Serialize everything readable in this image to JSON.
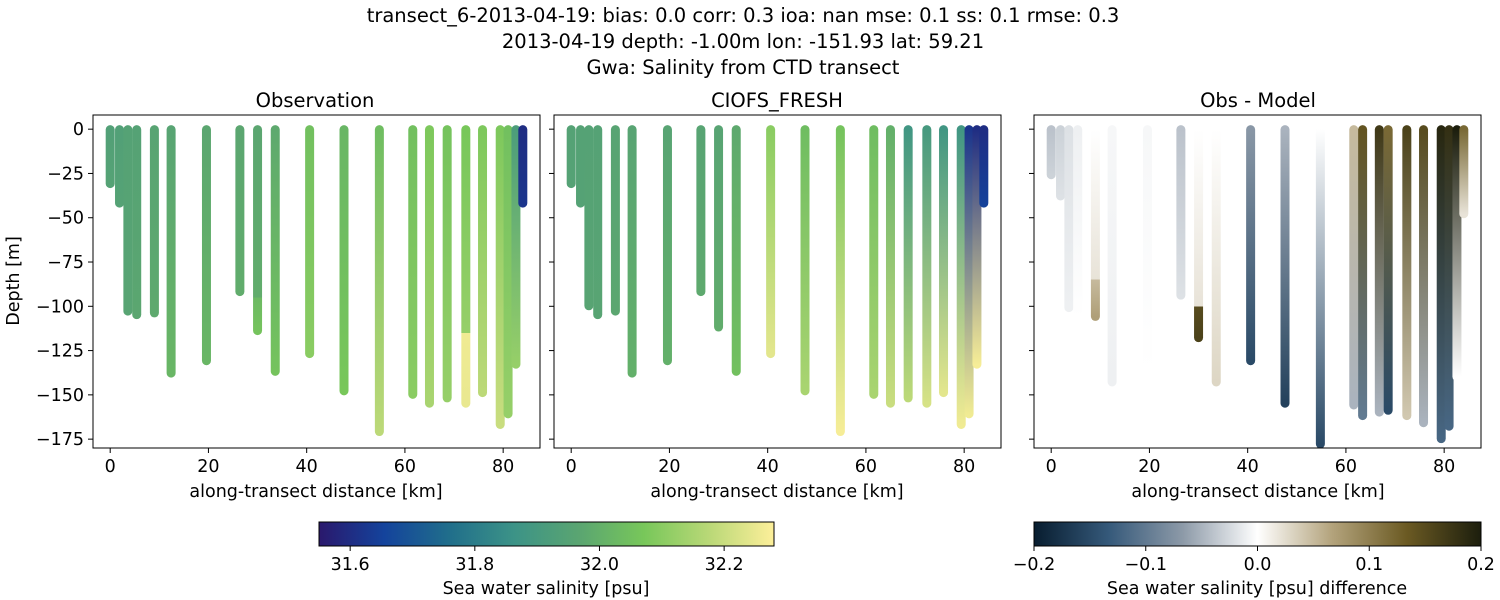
{
  "title_lines": [
    "transect_6-2013-04-19: bias: 0.0  corr: 0.3  ioa: nan  mse: 0.1  ss: 0.1  rmse: 0.3",
    "2013-04-19 depth: -1.00m lon: -151.93 lat: 59.21",
    "Gwa: Salinity from CTD transect"
  ],
  "chart_data": [
    {
      "type": "scatter",
      "title": "Observation",
      "xlabel": "along-transect distance [km]",
      "ylabel": "Depth [m]",
      "xlim": [
        -3.5,
        87.5
      ],
      "ylim": [
        -180,
        8
      ],
      "xticks": [
        0,
        20,
        40,
        60,
        80
      ],
      "yticks": [
        0,
        -25,
        -50,
        -75,
        -100,
        -125,
        -150,
        -175
      ],
      "colormap": "haline",
      "clim": [
        31.55,
        32.28
      ],
      "casts": [
        {
          "x": 0.0,
          "bottom": -31,
          "segments": [
            {
              "from": 0,
              "to": -31,
              "top": 31.94,
              "bottom": 31.95
            }
          ]
        },
        {
          "x": 1.9,
          "bottom": -42,
          "segments": [
            {
              "from": 0,
              "to": -42,
              "top": 31.94,
              "bottom": 31.95
            }
          ]
        },
        {
          "x": 3.6,
          "bottom": -103,
          "segments": [
            {
              "from": 0,
              "to": -103,
              "top": 31.95,
              "bottom": 31.96
            }
          ]
        },
        {
          "x": 5.4,
          "bottom": -105,
          "segments": [
            {
              "from": 0,
              "to": -105,
              "top": 31.95,
              "bottom": 31.97
            }
          ]
        },
        {
          "x": 9.0,
          "bottom": -104,
          "segments": [
            {
              "from": 0,
              "to": -104,
              "top": 31.96,
              "bottom": 31.98
            }
          ]
        },
        {
          "x": 12.4,
          "bottom": -138,
          "segments": [
            {
              "from": 0,
              "to": -138,
              "top": 31.96,
              "bottom": 32.02
            }
          ]
        },
        {
          "x": 19.6,
          "bottom": -131,
          "segments": [
            {
              "from": 0,
              "to": -131,
              "top": 31.97,
              "bottom": 32.02
            }
          ]
        },
        {
          "x": 26.4,
          "bottom": -92,
          "segments": [
            {
              "from": 0,
              "to": -92,
              "top": 31.97,
              "bottom": 31.99
            }
          ]
        },
        {
          "x": 30.0,
          "bottom": -114,
          "segments": [
            {
              "from": 0,
              "to": -95,
              "top": 31.97,
              "bottom": 31.99
            },
            {
              "from": -95,
              "to": -114,
              "top": 32.03,
              "bottom": 32.06
            }
          ]
        },
        {
          "x": 33.6,
          "bottom": -137,
          "segments": [
            {
              "from": 0,
              "to": -137,
              "top": 31.98,
              "bottom": 32.06
            }
          ]
        },
        {
          "x": 40.6,
          "bottom": -127,
          "segments": [
            {
              "from": 0,
              "to": -127,
              "top": 32.05,
              "bottom": 32.1
            }
          ]
        },
        {
          "x": 47.6,
          "bottom": -148,
          "segments": [
            {
              "from": 0,
              "to": -148,
              "top": 32.02,
              "bottom": 32.07
            }
          ]
        },
        {
          "x": 54.8,
          "bottom": -171,
          "segments": [
            {
              "from": 0,
              "to": -171,
              "top": 32.04,
              "bottom": 32.18
            }
          ]
        },
        {
          "x": 61.6,
          "bottom": -150,
          "segments": [
            {
              "from": 0,
              "to": -150,
              "top": 32.05,
              "bottom": 32.1
            }
          ]
        },
        {
          "x": 65.0,
          "bottom": -155,
          "segments": [
            {
              "from": 0,
              "to": -155,
              "top": 32.08,
              "bottom": 32.15
            }
          ]
        },
        {
          "x": 68.6,
          "bottom": -152,
          "segments": [
            {
              "from": 0,
              "to": -152,
              "top": 32.06,
              "bottom": 32.12
            }
          ]
        },
        {
          "x": 72.4,
          "bottom": -155,
          "segments": [
            {
              "from": 0,
              "to": -115,
              "top": 32.07,
              "bottom": 32.12
            },
            {
              "from": -115,
              "to": -155,
              "top": 32.26,
              "bottom": 32.25
            }
          ]
        },
        {
          "x": 75.8,
          "bottom": -149,
          "segments": [
            {
              "from": 0,
              "to": -149,
              "top": 32.08,
              "bottom": 32.18
            }
          ]
        },
        {
          "x": 79.4,
          "bottom": -167,
          "segments": [
            {
              "from": 0,
              "to": -167,
              "top": 32.08,
              "bottom": 32.2
            }
          ]
        },
        {
          "x": 81.0,
          "bottom": -161,
          "segments": [
            {
              "from": 0,
              "to": -161,
              "top": 32.05,
              "bottom": 32.12
            }
          ]
        },
        {
          "x": 82.6,
          "bottom": -133,
          "segments": [
            {
              "from": 0,
              "to": -133,
              "top": 31.92,
              "bottom": 32.12
            }
          ]
        },
        {
          "x": 84.0,
          "bottom": -42,
          "segments": [
            {
              "from": 0,
              "to": -42,
              "top": 31.6,
              "bottom": 31.62
            }
          ]
        }
      ]
    },
    {
      "type": "scatter",
      "title": "CIOFS_FRESH",
      "xlabel": "along-transect distance [km]",
      "ylabel": "",
      "xlim": [
        -3.5,
        87.5
      ],
      "ylim": [
        -180,
        8
      ],
      "xticks": [
        0,
        20,
        40,
        60,
        80
      ],
      "colormap": "haline",
      "clim": [
        31.55,
        32.28
      ],
      "casts": [
        {
          "x": 0.0,
          "bottom": -31,
          "segments": [
            {
              "from": 0,
              "to": -31,
              "top": 31.95,
              "bottom": 31.95
            }
          ]
        },
        {
          "x": 1.9,
          "bottom": -42,
          "segments": [
            {
              "from": 0,
              "to": -42,
              "top": 31.95,
              "bottom": 31.95
            }
          ]
        },
        {
          "x": 3.6,
          "bottom": -100,
          "segments": [
            {
              "from": 0,
              "to": -100,
              "top": 31.95,
              "bottom": 31.96
            }
          ]
        },
        {
          "x": 5.4,
          "bottom": -105,
          "segments": [
            {
              "from": 0,
              "to": -105,
              "top": 31.95,
              "bottom": 31.96
            }
          ]
        },
        {
          "x": 9.0,
          "bottom": -103,
          "segments": [
            {
              "from": 0,
              "to": -103,
              "top": 31.96,
              "bottom": 31.97
            }
          ]
        },
        {
          "x": 12.4,
          "bottom": -138,
          "segments": [
            {
              "from": 0,
              "to": -138,
              "top": 31.96,
              "bottom": 32.0
            }
          ]
        },
        {
          "x": 19.6,
          "bottom": -131,
          "segments": [
            {
              "from": 0,
              "to": -131,
              "top": 31.96,
              "bottom": 32.0
            }
          ]
        },
        {
          "x": 26.4,
          "bottom": -92,
          "segments": [
            {
              "from": 0,
              "to": -92,
              "top": 31.96,
              "bottom": 31.98
            }
          ]
        },
        {
          "x": 30.0,
          "bottom": -112,
          "segments": [
            {
              "from": 0,
              "to": -112,
              "top": 31.96,
              "bottom": 31.99
            }
          ]
        },
        {
          "x": 33.6,
          "bottom": -137,
          "segments": [
            {
              "from": 0,
              "to": -137,
              "top": 31.98,
              "bottom": 32.05
            }
          ]
        },
        {
          "x": 40.6,
          "bottom": -127,
          "segments": [
            {
              "from": 0,
              "to": -127,
              "top": 32.1,
              "bottom": 32.24
            }
          ]
        },
        {
          "x": 47.6,
          "bottom": -148,
          "segments": [
            {
              "from": 0,
              "to": -148,
              "top": 32.04,
              "bottom": 32.15
            }
          ]
        },
        {
          "x": 54.8,
          "bottom": -171,
          "segments": [
            {
              "from": 0,
              "to": -171,
              "top": 32.06,
              "bottom": 32.27
            }
          ]
        },
        {
          "x": 61.6,
          "bottom": -150,
          "segments": [
            {
              "from": 0,
              "to": -150,
              "top": 32.04,
              "bottom": 32.15
            }
          ]
        },
        {
          "x": 65.0,
          "bottom": -155,
          "segments": [
            {
              "from": 0,
              "to": -155,
              "top": 32.0,
              "bottom": 32.2
            }
          ]
        },
        {
          "x": 68.6,
          "bottom": -152,
          "segments": [
            {
              "from": 0,
              "to": -152,
              "top": 31.88,
              "bottom": 32.18
            }
          ]
        },
        {
          "x": 72.4,
          "bottom": -155,
          "segments": [
            {
              "from": 0,
              "to": -155,
              "top": 31.9,
              "bottom": 32.22
            }
          ]
        },
        {
          "x": 75.8,
          "bottom": -149,
          "segments": [
            {
              "from": 0,
              "to": -149,
              "top": 31.88,
              "bottom": 32.24
            }
          ]
        },
        {
          "x": 79.4,
          "bottom": -167,
          "segments": [
            {
              "from": 0,
              "to": -167,
              "top": 31.88,
              "bottom": 32.26
            }
          ]
        },
        {
          "x": 81.0,
          "bottom": -161,
          "segments": [
            {
              "from": 0,
              "to": -161,
              "top": 31.62,
              "bottom": 32.26
            }
          ]
        },
        {
          "x": 82.6,
          "bottom": -133,
          "segments": [
            {
              "from": 0,
              "to": -133,
              "top": 31.6,
              "bottom": 32.27
            }
          ]
        },
        {
          "x": 84.0,
          "bottom": -42,
          "segments": [
            {
              "from": 0,
              "to": -42,
              "top": 31.6,
              "bottom": 31.65
            }
          ]
        }
      ]
    },
    {
      "type": "scatter",
      "title": "Obs - Model",
      "xlabel": "along-transect distance [km]",
      "ylabel": "",
      "xlim": [
        -3.5,
        87.5
      ],
      "ylim": [
        -180,
        8
      ],
      "xticks": [
        0,
        20,
        40,
        60,
        80
      ],
      "colormap": "diff",
      "clim": [
        -0.2,
        0.2
      ],
      "casts": [
        {
          "x": 0.0,
          "bottom": -26,
          "segments": [
            {
              "from": 0,
              "to": -26,
              "top": -0.04,
              "bottom": -0.03
            }
          ]
        },
        {
          "x": 1.9,
          "bottom": -38,
          "segments": [
            {
              "from": 0,
              "to": -38,
              "top": -0.03,
              "bottom": -0.02
            }
          ]
        },
        {
          "x": 3.6,
          "bottom": -101,
          "segments": [
            {
              "from": 0,
              "to": -101,
              "top": -0.02,
              "bottom": -0.01
            }
          ]
        },
        {
          "x": 5.4,
          "bottom": -106,
          "segments": [
            {
              "from": 0,
              "to": -106,
              "top": -0.01,
              "bottom": 0.0
            }
          ]
        },
        {
          "x": 9.0,
          "bottom": -106,
          "segments": [
            {
              "from": 0,
              "to": -85,
              "top": 0.0,
              "bottom": 0.02
            },
            {
              "from": -85,
              "to": -106,
              "top": 0.05,
              "bottom": 0.07
            }
          ]
        },
        {
          "x": 12.4,
          "bottom": -143,
          "segments": [
            {
              "from": 0,
              "to": -143,
              "top": -0.005,
              "bottom": -0.01
            }
          ]
        },
        {
          "x": 19.6,
          "bottom": -137,
          "segments": [
            {
              "from": 0,
              "to": -137,
              "top": -0.005,
              "bottom": 0.0
            }
          ]
        },
        {
          "x": 26.4,
          "bottom": -94,
          "segments": [
            {
              "from": 0,
              "to": -94,
              "top": -0.04,
              "bottom": -0.02
            }
          ]
        },
        {
          "x": 30.0,
          "bottom": -118,
          "segments": [
            {
              "from": 0,
              "to": -100,
              "top": 0.0,
              "bottom": 0.02
            },
            {
              "from": -100,
              "to": -118,
              "top": 0.15,
              "bottom": 0.16
            }
          ]
        },
        {
          "x": 33.6,
          "bottom": -143,
          "segments": [
            {
              "from": 0,
              "to": -143,
              "top": 0.0,
              "bottom": 0.03
            }
          ]
        },
        {
          "x": 40.6,
          "bottom": -131,
          "segments": [
            {
              "from": 0,
              "to": -131,
              "top": -0.07,
              "bottom": -0.15
            }
          ]
        },
        {
          "x": 47.6,
          "bottom": -155,
          "segments": [
            {
              "from": 0,
              "to": -155,
              "top": -0.05,
              "bottom": -0.16
            }
          ]
        },
        {
          "x": 54.8,
          "bottom": -178,
          "segments": [
            {
              "from": 0,
              "to": -178,
              "top": 0.0,
              "bottom": -0.15
            }
          ]
        },
        {
          "x": 61.6,
          "bottom": -156,
          "segments": [
            {
              "from": 0,
              "to": -156,
              "top": 0.05,
              "bottom": -0.05
            }
          ]
        },
        {
          "x": 63.4,
          "bottom": -162,
          "segments": [
            {
              "from": 0,
              "to": -162,
              "top": 0.14,
              "bottom": -0.1
            }
          ]
        },
        {
          "x": 66.8,
          "bottom": -160,
          "segments": [
            {
              "from": 0,
              "to": -160,
              "top": 0.17,
              "bottom": -0.05
            }
          ]
        },
        {
          "x": 68.6,
          "bottom": -159,
          "segments": [
            {
              "from": 0,
              "to": -159,
              "top": 0.12,
              "bottom": -0.15
            }
          ]
        },
        {
          "x": 72.4,
          "bottom": -162,
          "segments": [
            {
              "from": 0,
              "to": -162,
              "top": 0.16,
              "bottom": 0.04
            }
          ]
        },
        {
          "x": 75.8,
          "bottom": -166,
          "segments": [
            {
              "from": 0,
              "to": -166,
              "top": 0.15,
              "bottom": -0.05
            }
          ]
        },
        {
          "x": 79.4,
          "bottom": -175,
          "segments": [
            {
              "from": 0,
              "to": -175,
              "top": 0.19,
              "bottom": -0.12
            }
          ]
        },
        {
          "x": 81.0,
          "bottom": -168,
          "segments": [
            {
              "from": 0,
              "to": -168,
              "top": 0.18,
              "bottom": -0.12
            }
          ]
        },
        {
          "x": 82.6,
          "bottom": -140,
          "segments": [
            {
              "from": 0,
              "to": -140,
              "top": 0.2,
              "bottom": 0.0
            }
          ]
        },
        {
          "x": 84.0,
          "bottom": -48,
          "segments": [
            {
              "from": 0,
              "to": -48,
              "top": 0.12,
              "bottom": 0.02
            }
          ]
        }
      ]
    }
  ],
  "colorbars": [
    {
      "label": "Sea water salinity [psu]",
      "colormap": "haline",
      "range": [
        31.55,
        32.28
      ],
      "ticks": [
        31.6,
        31.8,
        32.0,
        32.2
      ],
      "tick_labels": [
        "31.6",
        "31.8",
        "32.0",
        "32.2"
      ]
    },
    {
      "label": "Sea water salinity [psu] difference",
      "colormap": "diff",
      "range": [
        -0.2,
        0.2
      ],
      "ticks": [
        -0.2,
        -0.1,
        0.0,
        0.1,
        0.2
      ],
      "tick_labels": [
        "−0.2",
        "−0.1",
        "0.0",
        "0.1",
        "0.2"
      ]
    }
  ],
  "colormaps": {
    "haline": [
      "#2a186c",
      "#14439c",
      "#206e8b",
      "#3c9387",
      "#5aa571",
      "#78c75a",
      "#b9d877",
      "#fdef9a"
    ],
    "diff": [
      "#081d2f",
      "#35597a",
      "#8d9aa8",
      "#ffffff",
      "#b3a37c",
      "#6b5a23",
      "#1c1e0d"
    ]
  }
}
